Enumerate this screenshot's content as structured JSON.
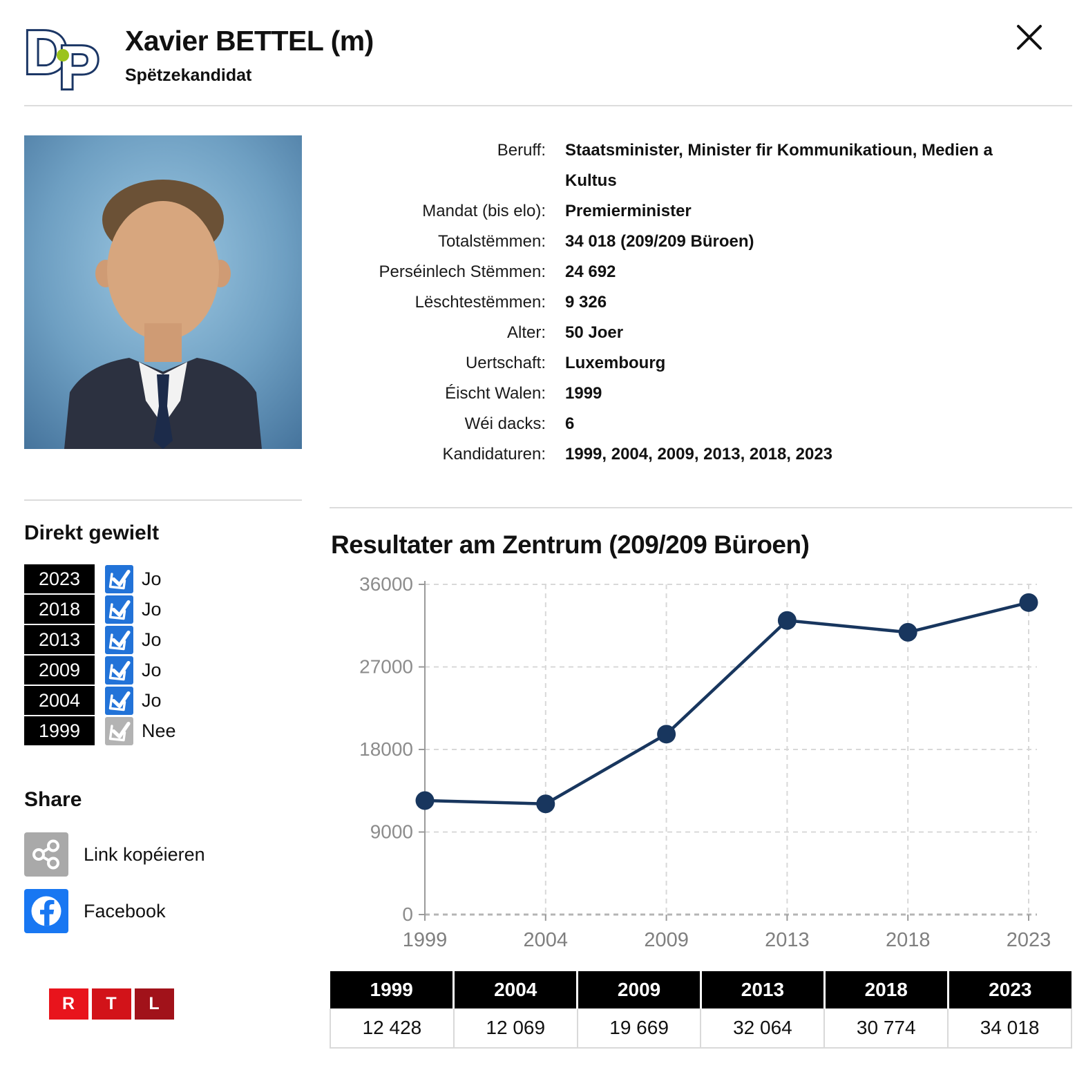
{
  "header": {
    "logo": "DP",
    "title": "Xavier BETTEL (m)",
    "subtitle": "Spëtzekandidat"
  },
  "info": {
    "rows": [
      {
        "label": "Beruff:",
        "value": "Staatsminister, Minister fir Kommunikatioun, Medien a Kultus"
      },
      {
        "label": "Mandat (bis elo):",
        "value": "Premierminister"
      },
      {
        "label": "Totalstëmmen:",
        "value": "34 018 (209/209 Büroen)"
      },
      {
        "label": "Perséinlech Stëmmen:",
        "value": "24 692"
      },
      {
        "label": "Lëschtestëmmen:",
        "value": "9 326"
      },
      {
        "label": "Alter:",
        "value": "50 Joer"
      },
      {
        "label": "Uertschaft:",
        "value": "Luxembourg"
      },
      {
        "label": "Éischt Walen:",
        "value": "1999"
      },
      {
        "label": "Wéi dacks:",
        "value": "6"
      },
      {
        "label": "Kandidaturen:",
        "value": "1999, 2004, 2009, 2013, 2018, 2023"
      }
    ]
  },
  "direkt_gewielt": {
    "heading": "Direkt gewielt",
    "rows": [
      {
        "year": "2023",
        "label": "Jo",
        "elected": true
      },
      {
        "year": "2018",
        "label": "Jo",
        "elected": true
      },
      {
        "year": "2013",
        "label": "Jo",
        "elected": true
      },
      {
        "year": "2009",
        "label": "Jo",
        "elected": true
      },
      {
        "year": "2004",
        "label": "Jo",
        "elected": true
      },
      {
        "year": "1999",
        "label": "Nee",
        "elected": false
      }
    ]
  },
  "share": {
    "heading": "Share",
    "items": [
      {
        "icon": "share-nodes-icon",
        "label": "Link kopéieren"
      },
      {
        "icon": "facebook-icon",
        "label": "Facebook"
      }
    ]
  },
  "footer": {
    "brand": [
      "R",
      "T",
      "L"
    ]
  },
  "chart_data": {
    "type": "line",
    "title": "Resultater am Zentrum (209/209 Büroen)",
    "categories": [
      "1999",
      "2004",
      "2009",
      "2013",
      "2018",
      "2023"
    ],
    "values": [
      12428,
      12069,
      19669,
      32064,
      30774,
      34018
    ],
    "value_labels": [
      "12 428",
      "12 069",
      "19 669",
      "32 064",
      "30 774",
      "34 018"
    ],
    "xlabel": "",
    "ylabel": "",
    "ylim": [
      0,
      36000
    ],
    "yticks": [
      0,
      9000,
      18000,
      27000,
      36000
    ],
    "grid": true,
    "legend": false,
    "line_color": "#18365e",
    "marker_color": "#18365e"
  },
  "colors": {
    "accent_navy": "#18365e",
    "checkbox_blue": "#2273d8",
    "checkbox_gray": "#b3b3b3",
    "facebook_blue": "#1877f2",
    "share_gray": "#a9a9a9",
    "dp_navy": "#1b3665",
    "dp_green": "#9bc31c",
    "rtl_reds": [
      "#e8141c",
      "#d21319",
      "#a1121a"
    ]
  }
}
